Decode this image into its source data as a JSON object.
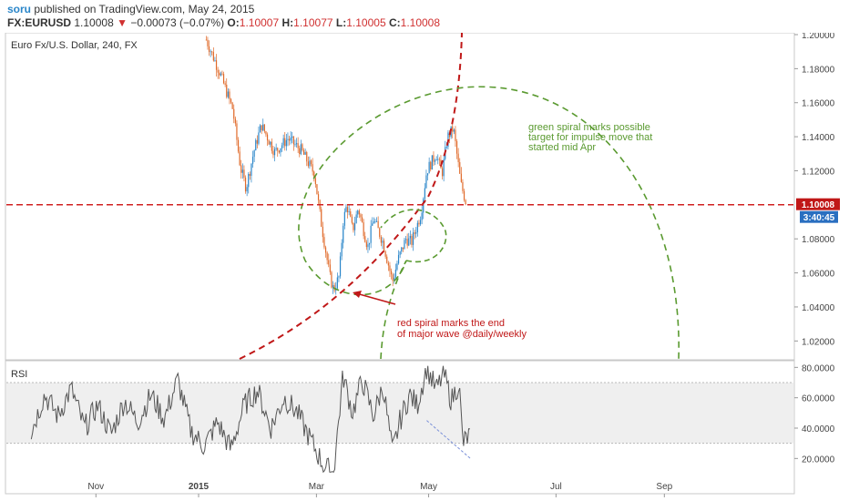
{
  "header": {
    "author": "soru",
    "published": "published on TradingView.com, May 24, 2015",
    "symbol": "FX:EURUSD",
    "last": "1.10008",
    "change": "−0.00073 (−0.07%)",
    "o_label": "O:",
    "o": "1.10007",
    "h_label": "H:",
    "h": "1.10077",
    "l_label": "L:",
    "l": "1.10005",
    "c_label": "C:",
    "c": "1.10008"
  },
  "colors": {
    "up": "#2a86c9",
    "down": "#e06a2a",
    "price_line": "#d02020",
    "green_spiral": "#5a9a30",
    "red_spiral": "#c01818",
    "rsi_line": "#555555",
    "rsi_band": "#efefef"
  },
  "chart_data": [
    {
      "type": "candlestick",
      "title": "Euro Fx/U.S. Dollar, 240, FX",
      "ylim": [
        1.01,
        1.2
      ],
      "y_ticks": [
        "1.20000",
        "1.18000",
        "1.16000",
        "1.14000",
        "1.12000",
        "1.10008",
        "1.08000",
        "1.06000",
        "1.04000",
        "1.02000"
      ],
      "x_ticks": [
        "Nov",
        "2015",
        "Mar",
        "May",
        "Jul",
        "Sep"
      ],
      "last_price": "1.10008",
      "countdown": "3:40:45",
      "horizontal_line": 1.10008,
      "close_path": [
        {
          "date": "2015-01-05",
          "close": 1.197
        },
        {
          "date": "2015-01-12",
          "close": 1.178
        },
        {
          "date": "2015-01-19",
          "close": 1.156
        },
        {
          "date": "2015-01-23",
          "close": 1.122
        },
        {
          "date": "2015-01-26",
          "close": 1.11
        },
        {
          "date": "2015-01-30",
          "close": 1.131
        },
        {
          "date": "2015-02-03",
          "close": 1.147
        },
        {
          "date": "2015-02-10",
          "close": 1.131
        },
        {
          "date": "2015-02-17",
          "close": 1.139
        },
        {
          "date": "2015-02-24",
          "close": 1.132
        },
        {
          "date": "2015-03-03",
          "close": 1.118
        },
        {
          "date": "2015-03-06",
          "close": 1.093
        },
        {
          "date": "2015-03-11",
          "close": 1.058
        },
        {
          "date": "2015-03-13",
          "close": 1.05
        },
        {
          "date": "2015-03-16",
          "close": 1.058
        },
        {
          "date": "2015-03-18",
          "close": 1.09
        },
        {
          "date": "2015-03-20",
          "close": 1.1
        },
        {
          "date": "2015-03-23",
          "close": 1.085
        },
        {
          "date": "2015-03-26",
          "close": 1.098
        },
        {
          "date": "2015-03-31",
          "close": 1.075
        },
        {
          "date": "2015-04-03",
          "close": 1.092
        },
        {
          "date": "2015-04-08",
          "close": 1.078
        },
        {
          "date": "2015-04-13",
          "close": 1.055
        },
        {
          "date": "2015-04-16",
          "close": 1.068
        },
        {
          "date": "2015-04-20",
          "close": 1.08
        },
        {
          "date": "2015-04-23",
          "close": 1.078
        },
        {
          "date": "2015-04-28",
          "close": 1.095
        },
        {
          "date": "2015-05-01",
          "close": 1.12
        },
        {
          "date": "2015-05-06",
          "close": 1.13
        },
        {
          "date": "2015-05-09",
          "close": 1.118
        },
        {
          "date": "2015-05-12",
          "close": 1.14
        },
        {
          "date": "2015-05-15",
          "close": 1.145
        },
        {
          "date": "2015-05-19",
          "close": 1.112
        },
        {
          "date": "2015-05-22",
          "close": 1.1
        }
      ],
      "annotations": [
        {
          "id": "green-note",
          "text": [
            "green spiral marks possible",
            "target for impulse move that",
            "started mid Apr"
          ]
        },
        {
          "id": "red-note",
          "text": [
            "red spiral marks the end",
            "of major wave @daily/weekly"
          ]
        }
      ]
    },
    {
      "type": "line",
      "title": "RSI",
      "ylim": [
        10,
        82
      ],
      "y_ticks": [
        "80.0000",
        "60.0000",
        "40.0000",
        "20.0000"
      ],
      "band": [
        30,
        70
      ],
      "trendline": [
        {
          "date": "2015-05-01",
          "value": 45
        },
        {
          "date": "2015-05-24",
          "value": 20
        }
      ],
      "series": [
        {
          "values": [
            {
              "date": "2014-10-05",
              "value": 38
            },
            {
              "date": "2014-10-12",
              "value": 62
            },
            {
              "date": "2014-10-19",
              "value": 48
            },
            {
              "date": "2014-10-26",
              "value": 66
            },
            {
              "date": "2014-11-02",
              "value": 40
            },
            {
              "date": "2014-11-09",
              "value": 55
            },
            {
              "date": "2014-11-16",
              "value": 36
            },
            {
              "date": "2014-11-23",
              "value": 58
            },
            {
              "date": "2014-11-30",
              "value": 44
            },
            {
              "date": "2014-12-07",
              "value": 62
            },
            {
              "date": "2014-12-14",
              "value": 46
            },
            {
              "date": "2014-12-21",
              "value": 72
            },
            {
              "date": "2014-12-28",
              "value": 38
            },
            {
              "date": "2015-01-04",
              "value": 28
            },
            {
              "date": "2015-01-11",
              "value": 44
            },
            {
              "date": "2015-01-18",
              "value": 26
            },
            {
              "date": "2015-01-25",
              "value": 55
            },
            {
              "date": "2015-02-01",
              "value": 65
            },
            {
              "date": "2015-02-08",
              "value": 40
            },
            {
              "date": "2015-02-15",
              "value": 60
            },
            {
              "date": "2015-02-22",
              "value": 50
            },
            {
              "date": "2015-03-01",
              "value": 32
            },
            {
              "date": "2015-03-08",
              "value": 15
            },
            {
              "date": "2015-03-13",
              "value": 10
            },
            {
              "date": "2015-03-18",
              "value": 75
            },
            {
              "date": "2015-03-23",
              "value": 50
            },
            {
              "date": "2015-03-28",
              "value": 72
            },
            {
              "date": "2015-04-03",
              "value": 48
            },
            {
              "date": "2015-04-08",
              "value": 68
            },
            {
              "date": "2015-04-13",
              "value": 24
            },
            {
              "date": "2015-04-17",
              "value": 45
            },
            {
              "date": "2015-04-22",
              "value": 62
            },
            {
              "date": "2015-04-26",
              "value": 55
            },
            {
              "date": "2015-05-01",
              "value": 80
            },
            {
              "date": "2015-05-06",
              "value": 65
            },
            {
              "date": "2015-05-10",
              "value": 76
            },
            {
              "date": "2015-05-14",
              "value": 58
            },
            {
              "date": "2015-05-18",
              "value": 70
            },
            {
              "date": "2015-05-20",
              "value": 30
            },
            {
              "date": "2015-05-24",
              "value": 36
            }
          ]
        }
      ]
    }
  ]
}
